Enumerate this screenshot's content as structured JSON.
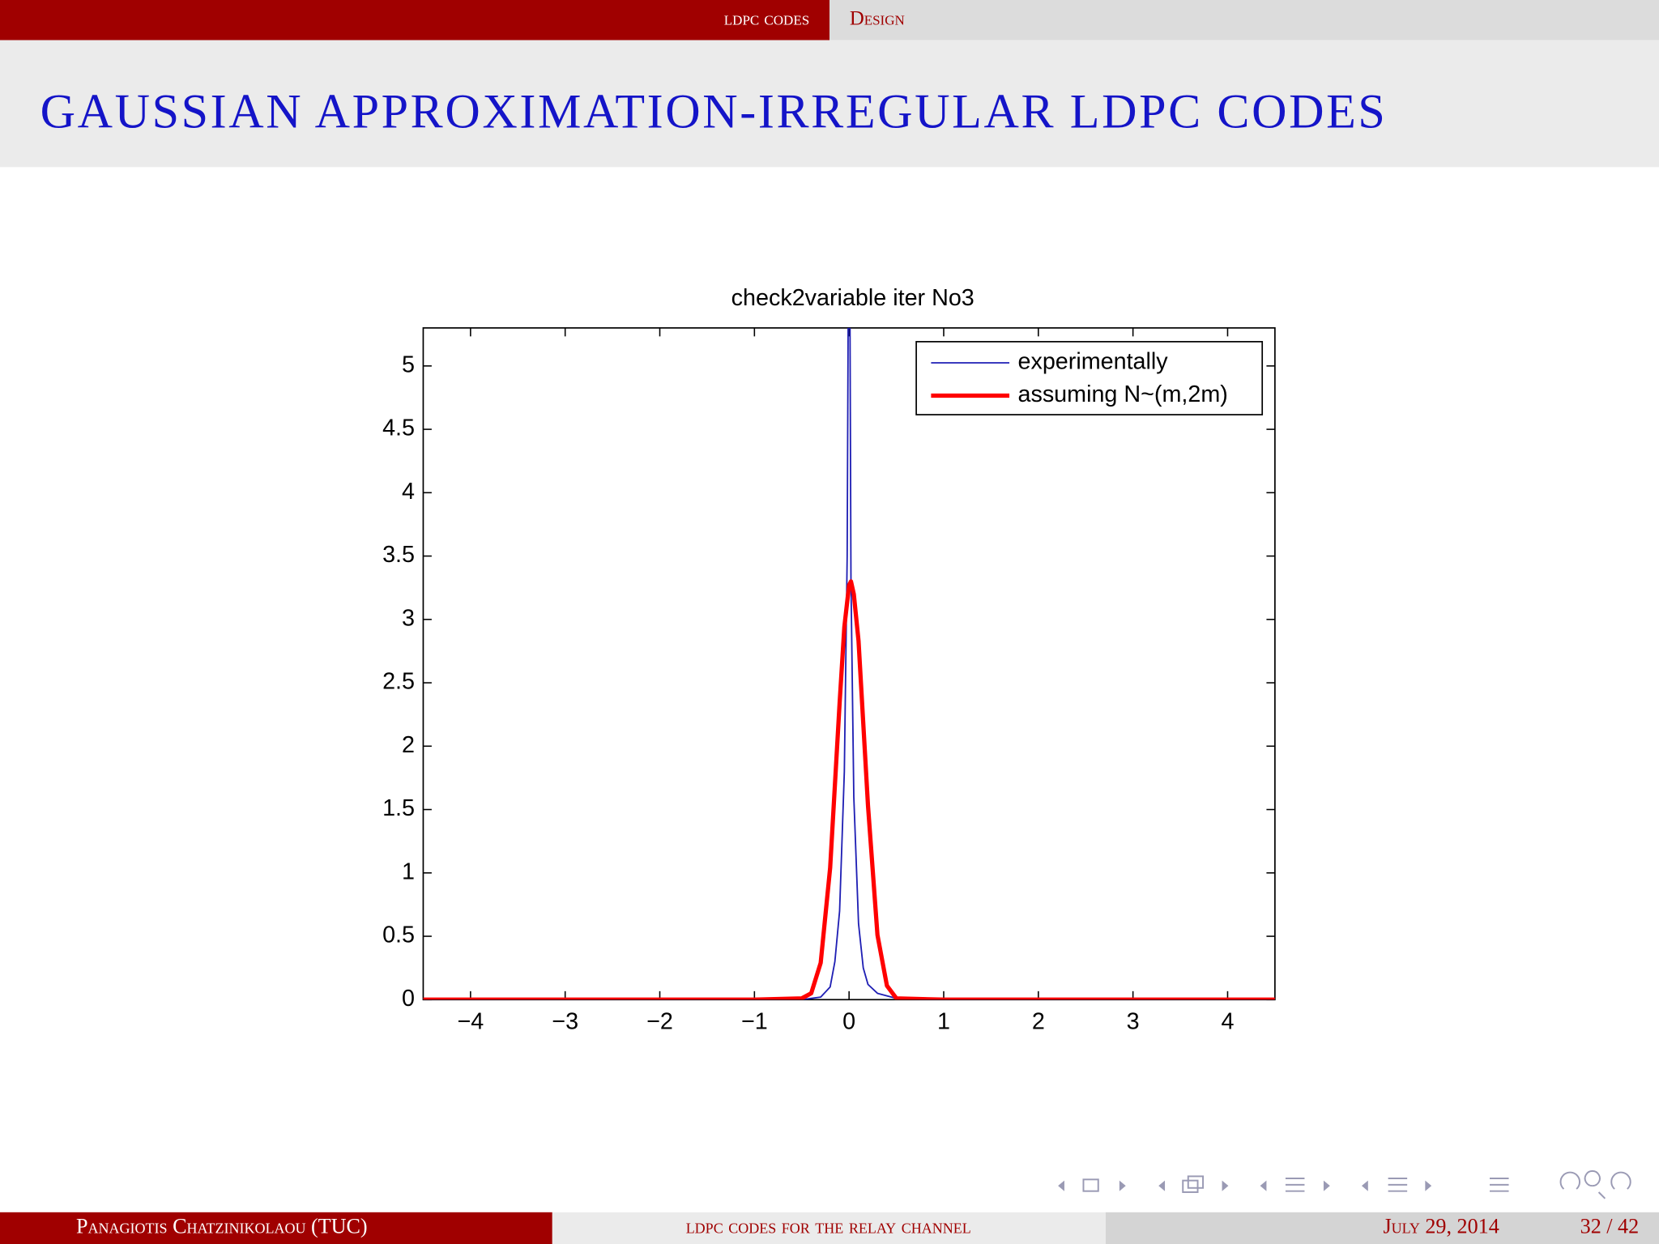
{
  "header": {
    "section": "ldpc codes",
    "subsection": "Design"
  },
  "slide_title": "GAUSSIAN APPROXIMATION-IRREGULAR LDPC CODES",
  "chart_data": {
    "type": "line",
    "title": "check2variable iter No3",
    "xlim": [
      -4.5,
      4.5
    ],
    "ylim": [
      0,
      5.3
    ],
    "xticks": [
      {
        "value": -4,
        "label": "−4"
      },
      {
        "value": -3,
        "label": "−3"
      },
      {
        "value": -2,
        "label": "−2"
      },
      {
        "value": -1,
        "label": "−1"
      },
      0,
      1,
      2,
      3,
      4
    ],
    "yticks": [
      0,
      0.5,
      1,
      1.5,
      2,
      2.5,
      3,
      3.5,
      4,
      4.5,
      5
    ],
    "legend": "upper right",
    "series": [
      {
        "name": "experimentally",
        "color": "#1f1fb4",
        "x": [
          -4.5,
          -0.5,
          -0.3,
          -0.2,
          -0.15,
          -0.1,
          -0.05,
          -0.02,
          -0.01,
          0,
          0.01,
          0.02,
          0.05,
          0.1,
          0.15,
          0.2,
          0.3,
          0.4,
          0.5,
          1,
          4.5
        ],
        "values": [
          0,
          0,
          0.02,
          0.1,
          0.3,
          0.7,
          1.8,
          3.5,
          5.3,
          5.3,
          5.3,
          3.3,
          1.6,
          0.6,
          0.25,
          0.12,
          0.05,
          0.03,
          0.01,
          0,
          0
        ]
      },
      {
        "name": "assuming N~(m,2m)",
        "color": "#ff0000",
        "x": [
          -4.5,
          -1,
          -0.5,
          -0.4,
          -0.3,
          -0.2,
          -0.1,
          -0.05,
          0,
          0.02,
          0.05,
          0.1,
          0.2,
          0.3,
          0.4,
          0.5,
          1,
          4.5
        ],
        "values": [
          0,
          0,
          0.01,
          0.05,
          0.29,
          1.04,
          2.34,
          2.94,
          3.27,
          3.3,
          3.2,
          2.83,
          1.53,
          0.51,
          0.11,
          0.01,
          0,
          0
        ]
      }
    ]
  },
  "footer": {
    "author": "Panagiotis Chatzinikolaou (TUC)",
    "talk": "ldpc codes for the relay channel",
    "date": "July 29, 2014",
    "page": "32 / 42"
  }
}
